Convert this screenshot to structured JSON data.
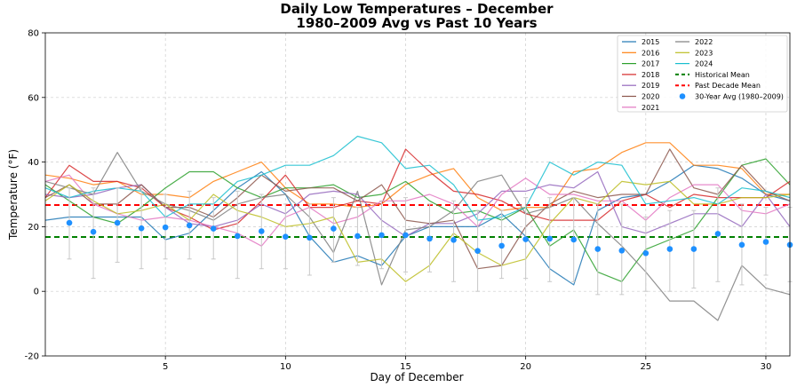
{
  "chart_data": {
    "type": "line",
    "title": "Daily Low Temperatures – December",
    "subtitle": "1980–2009 Avg vs Past 10 Years",
    "xlabel": "Day of December",
    "ylabel": "Temperature (°F)",
    "xlim": [
      0,
      31
    ],
    "ylim": [
      -20,
      80
    ],
    "xticks": [
      5,
      10,
      15,
      20,
      25,
      30
    ],
    "yticks": [
      -20,
      0,
      20,
      40,
      60,
      80
    ],
    "grid": true,
    "legend_position": "top-right",
    "x": [
      0,
      1,
      2,
      3,
      4,
      5,
      6,
      7,
      8,
      9,
      10,
      11,
      12,
      13,
      14,
      15,
      16,
      17,
      18,
      19,
      20,
      21,
      22,
      23,
      24,
      25,
      26,
      27,
      28,
      29,
      30,
      31
    ],
    "series": [
      {
        "name": "2015",
        "color": "#1f77b4",
        "values": [
          22,
          23,
          23,
          23,
          23,
          16,
          18,
          25,
          32,
          37,
          30,
          17,
          9,
          11,
          8,
          17,
          20,
          20,
          20,
          24,
          17,
          7,
          2,
          25,
          29,
          30,
          34,
          39,
          38,
          35,
          30,
          28
        ]
      },
      {
        "name": "2016",
        "color": "#ff7f0e",
        "values": [
          36,
          35,
          33,
          34,
          30,
          30,
          29,
          34,
          37,
          40,
          32,
          27,
          27,
          26,
          27,
          33,
          36,
          38,
          29,
          25,
          26,
          26,
          37,
          38,
          43,
          46,
          46,
          39,
          39,
          38,
          30,
          30
        ]
      },
      {
        "name": "2017",
        "color": "#2ca02c",
        "values": [
          33,
          28,
          23,
          21,
          26,
          32,
          37,
          37,
          32,
          29,
          32,
          32,
          33,
          29,
          30,
          34,
          28,
          24,
          25,
          22,
          26,
          14,
          19,
          6,
          3,
          13,
          16,
          19,
          29,
          39,
          41,
          33
        ]
      },
      {
        "name": "2018",
        "color": "#d62728",
        "values": [
          29,
          39,
          34,
          34,
          32,
          26,
          23,
          19,
          21,
          28,
          36,
          26,
          26,
          28,
          27,
          44,
          37,
          31,
          30,
          28,
          24,
          22,
          22,
          22,
          28,
          30,
          26,
          30,
          29,
          29,
          29,
          34
        ]
      },
      {
        "name": "2019",
        "color": "#9467bd",
        "values": [
          30,
          29,
          30,
          32,
          33,
          26,
          21,
          20,
          22,
          27,
          24,
          30,
          31,
          30,
          22,
          17,
          21,
          21,
          24,
          31,
          31,
          33,
          32,
          37,
          20,
          18,
          21,
          24,
          24,
          20,
          30,
          20
        ]
      },
      {
        "name": "2020",
        "color": "#8c564b",
        "values": [
          29,
          33,
          27,
          27,
          33,
          26,
          26,
          23,
          29,
          36,
          31,
          32,
          32,
          28,
          33,
          22,
          21,
          22,
          7,
          8,
          20,
          27,
          31,
          29,
          30,
          30,
          44,
          32,
          30,
          39,
          31,
          28
        ]
      },
      {
        "name": "2021",
        "color": "#e377c2",
        "values": [
          34,
          36,
          27,
          24,
          22,
          23,
          22,
          20,
          18,
          14,
          23,
          26,
          21,
          23,
          28,
          28,
          30,
          27,
          20,
          30,
          35,
          30,
          30,
          28,
          28,
          22,
          29,
          33,
          33,
          25,
          24,
          27
        ]
      },
      {
        "name": "2022",
        "color": "#7f7f7f",
        "values": [
          34,
          32,
          30,
          43,
          31,
          27,
          25,
          22,
          27,
          29,
          30,
          23,
          12,
          31,
          2,
          19,
          20,
          25,
          34,
          36,
          24,
          26,
          29,
          21,
          14,
          6,
          -3,
          -3,
          -9,
          8,
          1,
          -1
        ]
      },
      {
        "name": "2023",
        "color": "#bcbd22",
        "values": [
          28,
          33,
          28,
          24,
          25,
          27,
          22,
          30,
          25,
          23,
          20,
          21,
          23,
          9,
          10,
          3,
          8,
          18,
          12,
          8,
          10,
          21,
          29,
          27,
          34,
          33,
          34,
          27,
          27,
          29,
          29,
          30
        ]
      },
      {
        "name": "2024",
        "color": "#17becf",
        "values": [
          32,
          29,
          31,
          32,
          31,
          23,
          27,
          27,
          34,
          36,
          39,
          39,
          42,
          48,
          46,
          38,
          39,
          33,
          22,
          23,
          26,
          40,
          36,
          40,
          39,
          27,
          28,
          29,
          27,
          32,
          31,
          29
        ]
      }
    ],
    "reference_lines": [
      {
        "name": "Historical Mean",
        "value": 16.8,
        "color": "#008000",
        "style": "dashed"
      },
      {
        "name": "Past Decade Mean",
        "value": 26.7,
        "color": "#ff0000",
        "style": "dashed"
      }
    ],
    "avg_points": {
      "name": "30-Year Avg (1980–2009)",
      "color": "#1e90ff",
      "x": [
        1,
        2,
        3,
        4,
        5,
        6,
        7,
        8,
        9,
        10,
        11,
        12,
        13,
        14,
        15,
        16,
        17,
        18,
        19,
        20,
        21,
        22,
        23,
        24,
        25,
        26,
        27,
        28,
        29,
        30,
        31
      ],
      "values": [
        21.2,
        18.4,
        21.2,
        19.5,
        19.8,
        20.4,
        19.4,
        17.1,
        18.6,
        16.9,
        16.6,
        19.4,
        17.1,
        17.4,
        17.4,
        16.3,
        15.9,
        12.5,
        14.1,
        16.1,
        16.3,
        16.0,
        13.1,
        12.6,
        11.8,
        13.1,
        13.1,
        17.8,
        14.4,
        15.3,
        14.4
      ],
      "err_low": [
        10,
        4,
        9,
        7,
        10,
        10,
        10,
        4,
        7,
        7,
        5,
        9,
        8,
        7,
        6,
        6,
        3,
        0,
        4,
        4,
        3,
        3,
        -1,
        -1,
        0,
        0,
        1,
        3,
        2,
        5,
        3
      ],
      "err_high": [
        32,
        32,
        32,
        32,
        30,
        31,
        29,
        31,
        30,
        27,
        27,
        29,
        26,
        28,
        29,
        27,
        28,
        25,
        25,
        29,
        29,
        29,
        27,
        27,
        23,
        25,
        25,
        32,
        27,
        26,
        26
      ]
    }
  }
}
